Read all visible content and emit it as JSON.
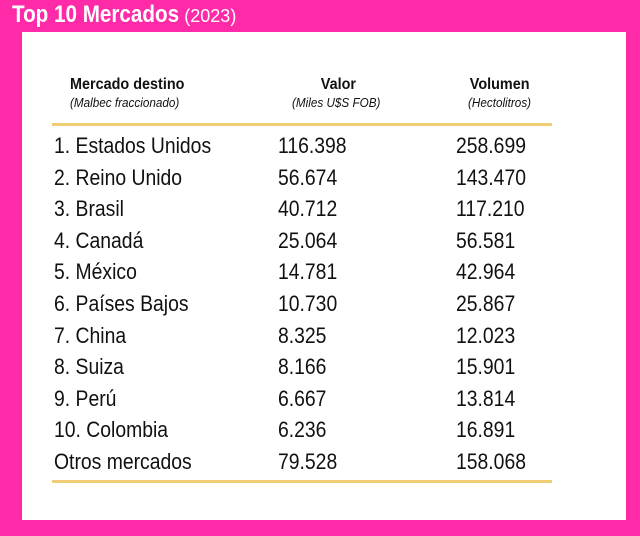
{
  "title": {
    "main": "Top 10 Mercados",
    "year": "(2023)"
  },
  "chart_data": {
    "type": "table",
    "columns": [
      {
        "label": "Mercado destino",
        "sublabel": "(Malbec fraccionado)"
      },
      {
        "label": "Valor",
        "sublabel": "(Miles U$S FOB)"
      },
      {
        "label": "Volumen",
        "sublabel": "(Hectolitros)"
      }
    ],
    "rows": [
      {
        "name": "1. Estados Unidos",
        "valor": "116.398",
        "volumen": "258.699"
      },
      {
        "name": "2. Reino Unido",
        "valor": "56.674",
        "volumen": "143.470"
      },
      {
        "name": "3. Brasil",
        "valor": "40.712",
        "volumen": "117.210"
      },
      {
        "name": "4. Canadá",
        "valor": "25.064",
        "volumen": "56.581"
      },
      {
        "name": "5. México",
        "valor": "14.781",
        "volumen": "42.964"
      },
      {
        "name": "6. Países Bajos",
        "valor": "10.730",
        "volumen": "25.867"
      },
      {
        "name": "7. China",
        "valor": "8.325",
        "volumen": "12.023"
      },
      {
        "name": "8. Suiza",
        "valor": "8.166",
        "volumen": "15.901"
      },
      {
        "name": "9. Perú",
        "valor": "6.667",
        "volumen": "13.814"
      },
      {
        "name": "10. Colombia",
        "valor": "6.236",
        "volumen": "16.891"
      },
      {
        "name": "Otros mercados",
        "valor": "79.528",
        "volumen": "158.068"
      }
    ]
  },
  "colors": {
    "background": "#ff2aa8",
    "card": "#ffffff",
    "rule": "#f1cd75"
  }
}
